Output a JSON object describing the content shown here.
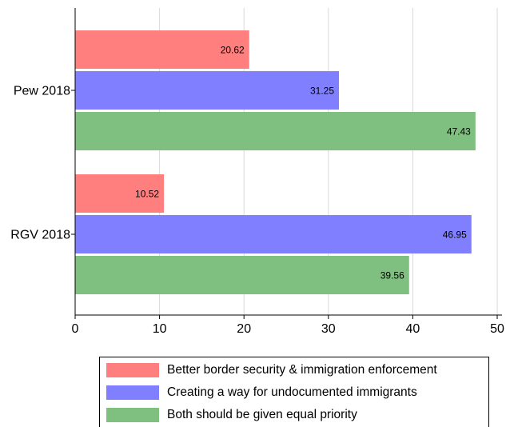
{
  "chart_data": {
    "type": "bar",
    "orientation": "horizontal",
    "categories": [
      "Pew 2018",
      "RGV 2018"
    ],
    "series": [
      {
        "name": "Better border security & immigration enforcement",
        "color": "#ff7f7f",
        "values": [
          20.62,
          10.52
        ]
      },
      {
        "name": "Creating a way for undocumented immigrants",
        "color": "#7f7fff",
        "values": [
          31.25,
          46.95
        ]
      },
      {
        "name": "Both should be given equal priority",
        "color": "#7fbf7f",
        "values": [
          47.43,
          39.56
        ]
      }
    ],
    "data_labels": [
      [
        "20.62",
        "10.52"
      ],
      [
        "31.25",
        "46.95"
      ],
      [
        "47.43",
        "39.56"
      ]
    ],
    "xlim": [
      0,
      50
    ],
    "xticks": [
      "0",
      "10",
      "20",
      "30",
      "40",
      "50"
    ],
    "grid": "vertical",
    "legend_position": "bottom"
  }
}
